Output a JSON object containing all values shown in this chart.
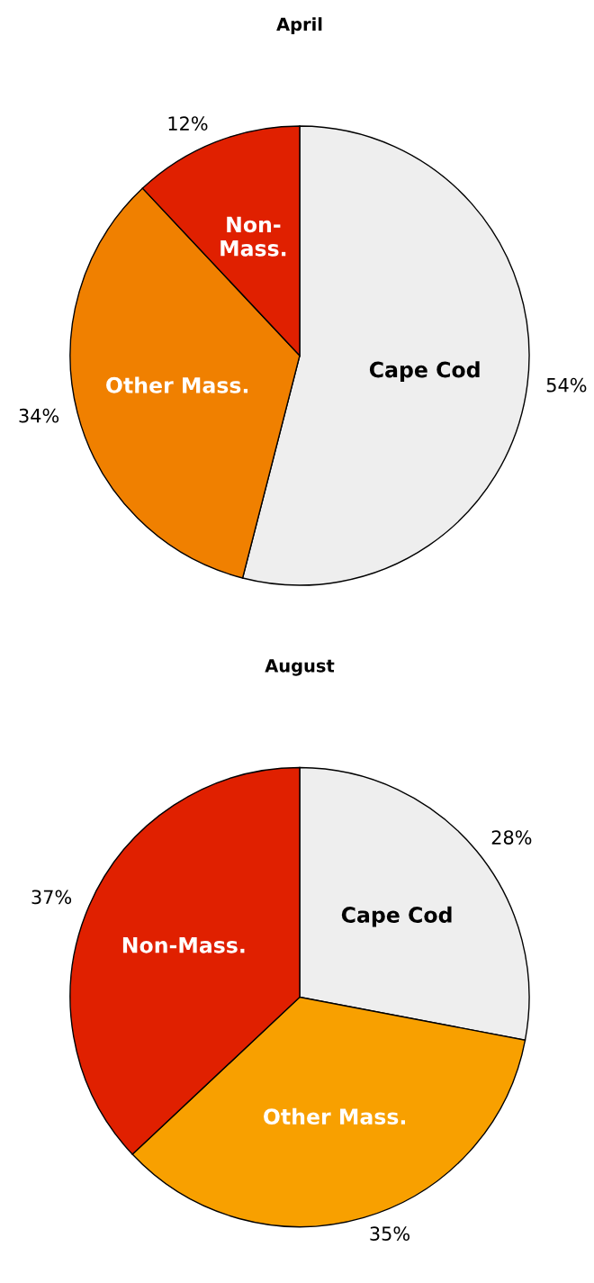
{
  "chart_data": [
    {
      "type": "pie",
      "title": "April",
      "categories": [
        "Cape Cod",
        "Other Mass.",
        "Non-Mass."
      ],
      "values": [
        54,
        34,
        12
      ],
      "colors": [
        "#eeeeee",
        "#f08000",
        "#e02000"
      ],
      "value_labels": [
        "54%",
        "34%",
        "12%"
      ]
    },
    {
      "type": "pie",
      "title": "August",
      "categories": [
        "Cape Cod",
        "Other Mass.",
        "Non-Mass."
      ],
      "values": [
        28,
        35,
        37
      ],
      "colors": [
        "#eeeeee",
        "#f8a000",
        "#e02000"
      ],
      "value_labels": [
        "28%",
        "35%",
        "37%"
      ]
    }
  ]
}
